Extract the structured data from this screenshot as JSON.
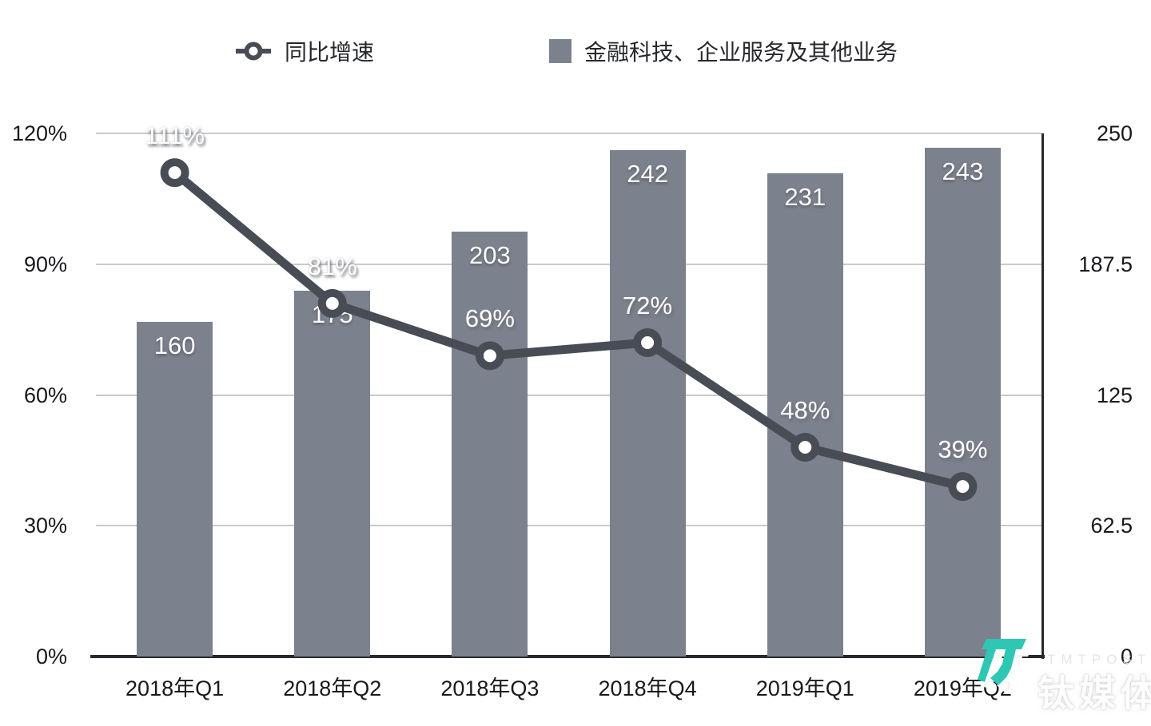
{
  "legend": {
    "line_label": "同比增速",
    "bar_label": "金融科技、企业服务及其他业务"
  },
  "watermark": {
    "brand_en": "TMTPOST",
    "brand_cn": "钛媒体"
  },
  "colors": {
    "bar": "#7b818d",
    "line": "#484c55",
    "marker_fill": "#ffffff",
    "grid": "#c9c9c9",
    "axis": "#27292e",
    "teal_logo": "#2fc7b4"
  },
  "chart_data": {
    "type": "combo",
    "categories": [
      "2018年Q1",
      "2018年Q2",
      "2018年Q3",
      "2018年Q4",
      "2019年Q1",
      "2019年Q2"
    ],
    "series": [
      {
        "name": "金融科技、企业服务及其他业务",
        "type": "bar",
        "axis": "right",
        "values": [
          160,
          175,
          203,
          242,
          231,
          243
        ],
        "labels": [
          "160",
          "175",
          "203",
          "242",
          "231",
          "243"
        ]
      },
      {
        "name": "同比增速",
        "type": "line",
        "axis": "left",
        "values_percent": [
          111,
          81,
          69,
          72,
          48,
          39
        ],
        "labels": [
          "111%",
          "81%",
          "69%",
          "72%",
          "48%",
          "39%"
        ]
      }
    ],
    "left_axis": {
      "ticks": [
        "0%",
        "30%",
        "60%",
        "90%",
        "120%"
      ],
      "min": 0,
      "max": 120
    },
    "right_axis": {
      "ticks": [
        "0",
        "62.5",
        "125",
        "187.5",
        "250"
      ],
      "min": 0,
      "max": 250
    },
    "grid": true,
    "legend_position": "top"
  }
}
